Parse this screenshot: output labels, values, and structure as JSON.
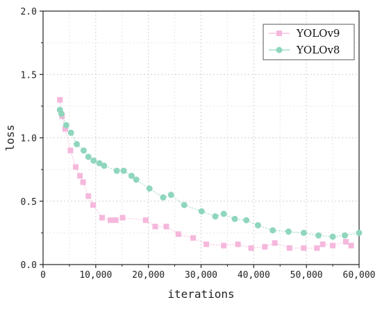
{
  "chart_data": {
    "type": "line",
    "xlabel": "iterations",
    "ylabel": "loss",
    "xlim": [
      0,
      60000
    ],
    "ylim": [
      0,
      2.0
    ],
    "grid": true,
    "legend_position": "top-right",
    "x_ticks": [
      0,
      10000,
      20000,
      30000,
      40000,
      50000,
      60000
    ],
    "x_tick_labels": [
      "0",
      "10,000",
      "20,000",
      "30,000",
      "40,000",
      "50,000",
      "60,000"
    ],
    "y_ticks": [
      0,
      0.5,
      1.0,
      1.5,
      2.0
    ],
    "y_tick_labels": [
      "0.0",
      "0.5",
      "1.0",
      "1.5",
      "2.0"
    ],
    "series": [
      {
        "name": "YOLOv9",
        "color": "#f5b8dc",
        "marker": "square",
        "x": [
          3200,
          3600,
          4200,
          5200,
          6200,
          7000,
          7600,
          8600,
          9500,
          11200,
          12800,
          13800,
          15100,
          19500,
          21300,
          23400,
          25700,
          28500,
          31000,
          34300,
          37000,
          39500,
          42100,
          44000,
          46800,
          49500,
          52000,
          53100,
          55000,
          57500,
          58500
        ],
        "y": [
          1.3,
          1.17,
          1.07,
          0.9,
          0.77,
          0.7,
          0.65,
          0.54,
          0.47,
          0.37,
          0.35,
          0.35,
          0.37,
          0.35,
          0.3,
          0.3,
          0.24,
          0.21,
          0.16,
          0.15,
          0.16,
          0.13,
          0.14,
          0.17,
          0.13,
          0.13,
          0.13,
          0.16,
          0.15,
          0.18,
          0.15
        ]
      },
      {
        "name": "YOLOv8",
        "color": "#8fd6bd",
        "marker": "circle",
        "x": [
          3200,
          3500,
          4400,
          5300,
          6400,
          7700,
          8600,
          9600,
          10700,
          11600,
          14000,
          15300,
          16800,
          17700,
          20200,
          22800,
          24300,
          26800,
          30100,
          32700,
          34300,
          36400,
          38600,
          40800,
          43600,
          46600,
          49500,
          52300,
          55000,
          57300,
          60000
        ],
        "y": [
          1.22,
          1.19,
          1.1,
          1.04,
          0.95,
          0.9,
          0.85,
          0.82,
          0.8,
          0.78,
          0.74,
          0.74,
          0.7,
          0.67,
          0.6,
          0.53,
          0.55,
          0.47,
          0.42,
          0.38,
          0.4,
          0.36,
          0.35,
          0.31,
          0.27,
          0.26,
          0.25,
          0.23,
          0.22,
          0.23,
          0.25
        ]
      }
    ]
  }
}
